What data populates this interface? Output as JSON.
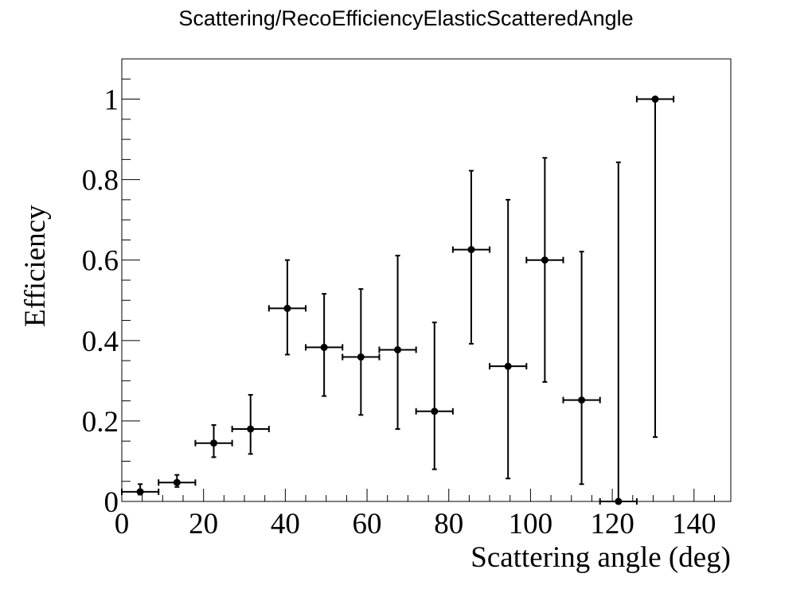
{
  "chart_data": {
    "type": "scatter",
    "title": "Scattering/RecoEfficiencyElasticScatteredAngle",
    "xlabel": "Scattering angle (deg)",
    "ylabel": "Efficiency",
    "xlim": [
      0,
      149
    ],
    "ylim": [
      0,
      1.1
    ],
    "grid": false,
    "x_ticks": [
      0,
      20,
      40,
      60,
      80,
      100,
      120,
      140
    ],
    "y_ticks": [
      0,
      0.2,
      0.4,
      0.6,
      0.8,
      1
    ],
    "x_tick_labels": [
      "0",
      "20",
      "40",
      "60",
      "80",
      "100",
      "120",
      "140"
    ],
    "y_tick_labels": [
      "0",
      "0.2",
      "0.4",
      "0.6",
      "0.8",
      "1"
    ],
    "bin_half_width": 4.5,
    "points": [
      {
        "x": 4.5,
        "y": 0.024,
        "y_low": 0.017,
        "y_high": 0.043
      },
      {
        "x": 13.5,
        "y": 0.047,
        "y_low": 0.036,
        "y_high": 0.066
      },
      {
        "x": 22.5,
        "y": 0.145,
        "y_low": 0.11,
        "y_high": 0.19
      },
      {
        "x": 31.5,
        "y": 0.18,
        "y_low": 0.118,
        "y_high": 0.265
      },
      {
        "x": 40.5,
        "y": 0.48,
        "y_low": 0.365,
        "y_high": 0.6
      },
      {
        "x": 49.5,
        "y": 0.383,
        "y_low": 0.262,
        "y_high": 0.516
      },
      {
        "x": 58.5,
        "y": 0.359,
        "y_low": 0.215,
        "y_high": 0.528
      },
      {
        "x": 67.5,
        "y": 0.377,
        "y_low": 0.18,
        "y_high": 0.611
      },
      {
        "x": 76.5,
        "y": 0.224,
        "y_low": 0.08,
        "y_high": 0.445
      },
      {
        "x": 85.5,
        "y": 0.626,
        "y_low": 0.392,
        "y_high": 0.822
      },
      {
        "x": 94.5,
        "y": 0.336,
        "y_low": 0.057,
        "y_high": 0.75
      },
      {
        "x": 103.5,
        "y": 0.6,
        "y_low": 0.297,
        "y_high": 0.854
      },
      {
        "x": 112.5,
        "y": 0.252,
        "y_low": 0.043,
        "y_high": 0.621
      },
      {
        "x": 121.5,
        "y": 0.0,
        "y_low": 0.0,
        "y_high": 0.843
      },
      {
        "x": 130.5,
        "y": 1.0,
        "y_low": 0.16,
        "y_high": 1.0
      }
    ],
    "marker_color": "#000000",
    "line_color": "#000000"
  }
}
